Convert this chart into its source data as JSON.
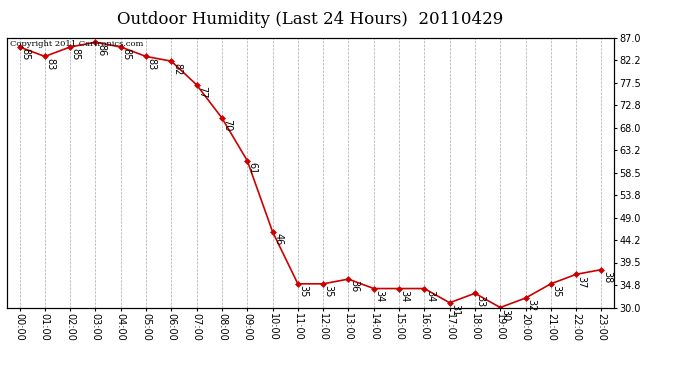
{
  "title": "Outdoor Humidity (Last 24 Hours)  20110429",
  "copyright": "Copyright 2011 Cartronics.com",
  "hours": [
    "00:00",
    "01:00",
    "02:00",
    "03:00",
    "04:00",
    "05:00",
    "06:00",
    "07:00",
    "08:00",
    "09:00",
    "10:00",
    "11:00",
    "12:00",
    "13:00",
    "14:00",
    "15:00",
    "16:00",
    "17:00",
    "18:00",
    "19:00",
    "20:00",
    "21:00",
    "22:00",
    "23:00"
  ],
  "values": [
    85,
    83,
    85,
    86,
    85,
    83,
    82,
    77,
    70,
    61,
    46,
    35,
    35,
    36,
    34,
    34,
    34,
    31,
    33,
    30,
    32,
    35,
    37,
    38
  ],
  "line_color": "#cc0000",
  "marker_color": "#cc0000",
  "bg_color": "#ffffff",
  "grid_color": "#aaaaaa",
  "ylim": [
    30.0,
    87.0
  ],
  "yticks_right": [
    87.0,
    82.2,
    77.5,
    72.8,
    68.0,
    63.2,
    58.5,
    53.8,
    49.0,
    44.2,
    39.5,
    34.8,
    30.0
  ],
  "title_fontsize": 12,
  "label_fontsize": 7,
  "tick_fontsize": 7,
  "copyright_fontsize": 6
}
